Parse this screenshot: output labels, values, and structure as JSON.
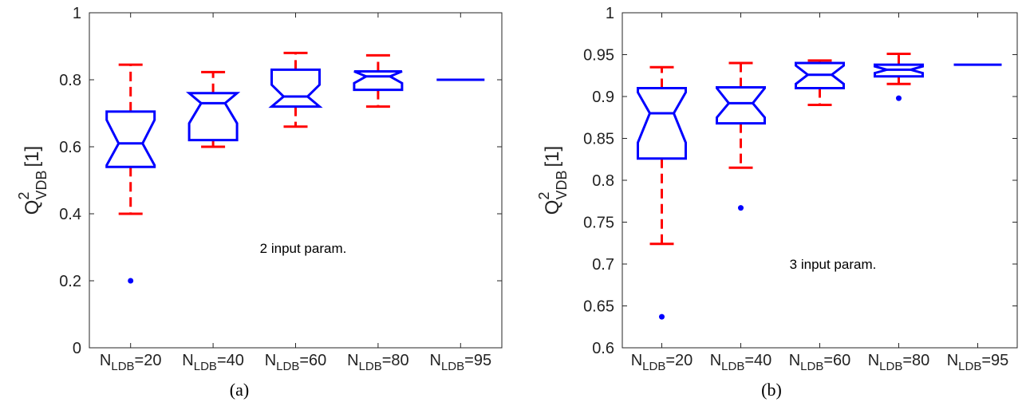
{
  "colors": {
    "box": "#0000ff",
    "whisker": "#ff0000",
    "axis": "#262626",
    "outlier": "#0000ff"
  },
  "chart_data": [
    {
      "type": "box",
      "caption": "(a)",
      "annotation": "2 input param.",
      "ylabel": "Q",
      "ylabel_sup": "2",
      "ylabel_sub": "VDB",
      "ylabel_unit": "[1]",
      "ylim": [
        0,
        1
      ],
      "yticks": [
        "0",
        "0.2",
        "0.4",
        "0.6",
        "0.8",
        "1"
      ],
      "grid": false,
      "categories": [
        {
          "main": "N",
          "sub": "LDB",
          "value": "=20"
        },
        {
          "main": "N",
          "sub": "LDB",
          "value": "=40"
        },
        {
          "main": "N",
          "sub": "LDB",
          "value": "=60"
        },
        {
          "main": "N",
          "sub": "LDB",
          "value": "=80"
        },
        {
          "main": "N",
          "sub": "LDB",
          "value": "=95"
        }
      ],
      "boxes": [
        {
          "whisker_low": 0.4,
          "q1": 0.54,
          "median": 0.61,
          "q3": 0.705,
          "whisker_high": 0.845,
          "notch_low": 0.545,
          "notch_high": 0.68,
          "outliers": [
            0.2
          ]
        },
        {
          "whisker_low": 0.6,
          "q1": 0.62,
          "median": 0.73,
          "q3": 0.76,
          "whisker_high": 0.823,
          "notch_low": 0.67,
          "notch_high": 0.79,
          "outliers": []
        },
        {
          "whisker_low": 0.66,
          "q1": 0.72,
          "median": 0.75,
          "q3": 0.83,
          "whisker_high": 0.88,
          "notch_low": 0.715,
          "notch_high": 0.785,
          "outliers": []
        },
        {
          "whisker_low": 0.72,
          "q1": 0.77,
          "median": 0.81,
          "q3": 0.825,
          "whisker_high": 0.873,
          "notch_low": 0.79,
          "notch_high": 0.83,
          "outliers": []
        },
        {
          "whisker_low": 0.8,
          "q1": 0.8,
          "median": 0.8,
          "q3": 0.8,
          "whisker_high": 0.8,
          "notch_low": 0.8,
          "notch_high": 0.8,
          "outliers": []
        }
      ]
    },
    {
      "type": "box",
      "caption": "(b)",
      "annotation": "3 input param.",
      "ylabel": "Q",
      "ylabel_sup": "2",
      "ylabel_sub": "VDB",
      "ylabel_unit": "[1]",
      "ylim": [
        0.6,
        1
      ],
      "yticks": [
        "0.6",
        "0.65",
        "0.7",
        "0.75",
        "0.8",
        "0.85",
        "0.9",
        "0.95",
        "1"
      ],
      "grid": false,
      "categories": [
        {
          "main": "N",
          "sub": "LDB",
          "value": "=20"
        },
        {
          "main": "N",
          "sub": "LDB",
          "value": "=40"
        },
        {
          "main": "N",
          "sub": "LDB",
          "value": "=60"
        },
        {
          "main": "N",
          "sub": "LDB",
          "value": "=80"
        },
        {
          "main": "N",
          "sub": "LDB",
          "value": "=95"
        }
      ],
      "boxes": [
        {
          "whisker_low": 0.724,
          "q1": 0.826,
          "median": 0.88,
          "q3": 0.91,
          "whisker_high": 0.935,
          "notch_low": 0.845,
          "notch_high": 0.905,
          "outliers": [
            0.637
          ]
        },
        {
          "whisker_low": 0.815,
          "q1": 0.868,
          "median": 0.892,
          "q3": 0.911,
          "whisker_high": 0.94,
          "notch_low": 0.875,
          "notch_high": 0.91,
          "outliers": [
            0.767
          ]
        },
        {
          "whisker_low": 0.89,
          "q1": 0.91,
          "median": 0.926,
          "q3": 0.94,
          "whisker_high": 0.943,
          "notch_low": 0.915,
          "notch_high": 0.937,
          "outliers": []
        },
        {
          "whisker_low": 0.915,
          "q1": 0.924,
          "median": 0.932,
          "q3": 0.938,
          "whisker_high": 0.951,
          "notch_low": 0.928,
          "notch_high": 0.936,
          "outliers": [
            0.898
          ]
        },
        {
          "whisker_low": 0.938,
          "q1": 0.938,
          "median": 0.938,
          "q3": 0.938,
          "whisker_high": 0.938,
          "notch_low": 0.938,
          "notch_high": 0.938,
          "outliers": []
        }
      ]
    }
  ]
}
